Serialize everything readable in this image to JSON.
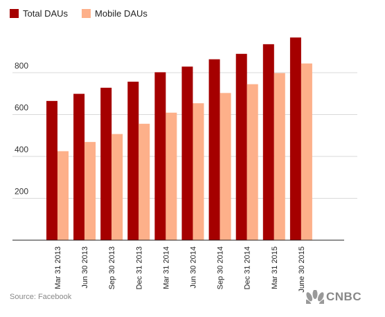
{
  "chart_data": {
    "type": "bar",
    "categories": [
      "Mar 31 2013",
      "Jun 30 2013",
      "Sep 30 2013",
      "Dec 31 2013",
      "Mar 31 2014",
      "Jun 30 2014",
      "Sep 30 2014",
      "Dec 31 2014",
      "Mar 31 2015",
      "June 30 2015"
    ],
    "series": [
      {
        "name": "Total DAUs",
        "color": "#a50000",
        "values": [
          665,
          699,
          728,
          757,
          802,
          829,
          864,
          890,
          936,
          968
        ]
      },
      {
        "name": "Mobile DAUs",
        "color": "#fdb08a",
        "values": [
          425,
          469,
          507,
          556,
          609,
          654,
          703,
          745,
          798,
          844
        ]
      }
    ],
    "yticks": [
      200,
      400,
      600,
      800
    ],
    "ylim": [
      0,
      1000
    ],
    "grid": true,
    "legend_position": "top-left",
    "source": "Source: Facebook"
  },
  "branding": {
    "logo_text": "CNBC",
    "logo_icon": "peacock-icon"
  }
}
